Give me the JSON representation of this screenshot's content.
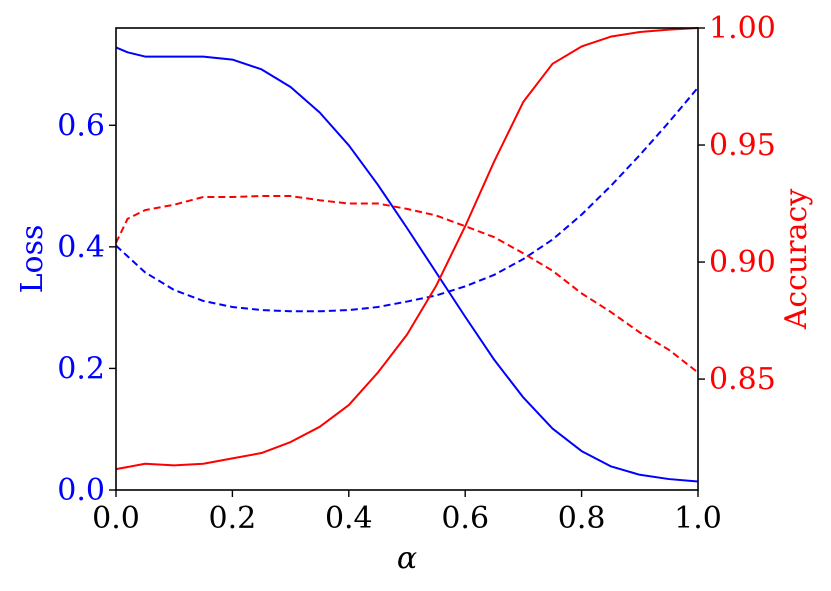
{
  "chart_data": {
    "type": "line",
    "xlabel": "α",
    "ylabel_left": "Loss",
    "ylabel_right": "Accuracy",
    "xlim": [
      0.0,
      1.0
    ],
    "ylim_left": [
      0.0,
      0.76
    ],
    "ylim_right": [
      0.8026,
      1.0
    ],
    "xticks": [
      "0.0",
      "0.2",
      "0.4",
      "0.6",
      "0.8",
      "1.0"
    ],
    "yticks_left": [
      "0.0",
      "0.2",
      "0.4",
      "0.6"
    ],
    "yticks_right": [
      "0.85",
      "0.90",
      "0.95",
      "1.00"
    ],
    "colors": {
      "loss_axis": "#0000ff",
      "accuracy_axis": "#ff0000",
      "frame": "#000000"
    },
    "grid": false,
    "series": [
      {
        "axis": "left",
        "color": "#0000ff",
        "dash": "solid",
        "x": [
          0.0,
          0.02,
          0.05,
          0.1,
          0.15,
          0.2,
          0.25,
          0.3,
          0.35,
          0.4,
          0.45,
          0.5,
          0.55,
          0.6,
          0.65,
          0.7,
          0.75,
          0.8,
          0.85,
          0.9,
          0.95,
          1.0
        ],
        "y": [
          0.728,
          0.72,
          0.713,
          0.713,
          0.713,
          0.708,
          0.692,
          0.663,
          0.621,
          0.567,
          0.502,
          0.431,
          0.358,
          0.285,
          0.214,
          0.152,
          0.101,
          0.064,
          0.039,
          0.025,
          0.018,
          0.014
        ]
      },
      {
        "axis": "left",
        "color": "#0000ff",
        "dash": "dashed",
        "x": [
          0.0,
          0.05,
          0.1,
          0.15,
          0.2,
          0.25,
          0.3,
          0.35,
          0.4,
          0.45,
          0.5,
          0.55,
          0.6,
          0.65,
          0.7,
          0.75,
          0.8,
          0.85,
          0.9,
          0.95,
          1.0
        ],
        "y": [
          0.402,
          0.358,
          0.329,
          0.311,
          0.301,
          0.296,
          0.294,
          0.294,
          0.296,
          0.301,
          0.31,
          0.32,
          0.335,
          0.354,
          0.38,
          0.412,
          0.453,
          0.5,
          0.551,
          0.605,
          0.662
        ]
      },
      {
        "axis": "right",
        "color": "#ff0000",
        "dash": "solid",
        "x": [
          0.0,
          0.05,
          0.1,
          0.15,
          0.2,
          0.25,
          0.3,
          0.35,
          0.4,
          0.45,
          0.5,
          0.55,
          0.6,
          0.65,
          0.7,
          0.75,
          0.8,
          0.85,
          0.9,
          0.95,
          1.0
        ],
        "y": [
          0.8115,
          0.8138,
          0.8131,
          0.8138,
          0.8161,
          0.8184,
          0.8231,
          0.8296,
          0.8389,
          0.8528,
          0.869,
          0.8898,
          0.9153,
          0.9431,
          0.9685,
          0.9847,
          0.9921,
          0.9963,
          0.9983,
          0.9993,
          1.0
        ]
      },
      {
        "axis": "right",
        "color": "#ff0000",
        "dash": "dashed",
        "x": [
          0.0,
          0.02,
          0.05,
          0.1,
          0.15,
          0.2,
          0.25,
          0.3,
          0.35,
          0.4,
          0.45,
          0.5,
          0.55,
          0.6,
          0.65,
          0.7,
          0.75,
          0.8,
          0.85,
          0.9,
          0.95,
          1.0
        ],
        "y": [
          0.9082,
          0.9185,
          0.9222,
          0.9245,
          0.9278,
          0.9278,
          0.9282,
          0.9282,
          0.9264,
          0.925,
          0.925,
          0.9227,
          0.9199,
          0.9153,
          0.9106,
          0.9037,
          0.8963,
          0.8866,
          0.8787,
          0.8699,
          0.8625,
          0.8528
        ]
      }
    ]
  }
}
